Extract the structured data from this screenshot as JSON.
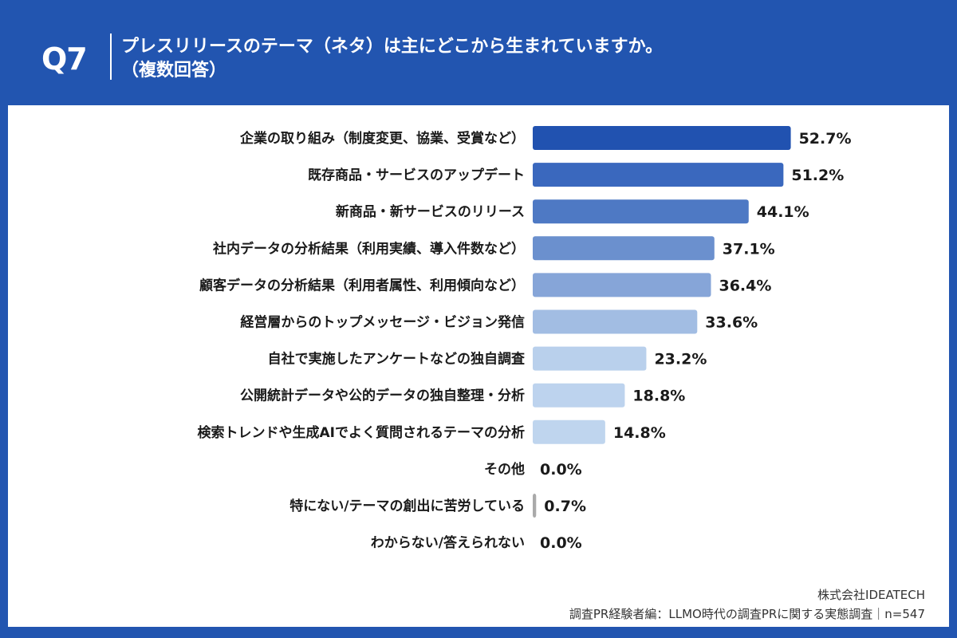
{
  "header": {
    "question_no": "Q7",
    "title_line1": "プレスリリースのテーマ（ネタ）は主にどこから生まれていますか。",
    "title_line2": "（複数回答）"
  },
  "chart_data": {
    "type": "bar",
    "orientation": "horizontal",
    "categories": [
      "企業の取り組み（制度変更、協業、受賞など）",
      "既存商品・サービスのアップデート",
      "新商品・新サービスのリリース",
      "社内データの分析結果（利用実績、導入件数など）",
      "顧客データの分析結果（利用者属性、利用傾向など）",
      "経営層からのトップメッセージ・ビジョン発信",
      "自社で実施したアンケートなどの独自調査",
      "公開統計データや公的データの独自整理・分析",
      "検索トレンドや生成AIでよく質問されるテーマの分析",
      "その他",
      "特にない/テーマの創出に苦労している",
      "わからない/答えられない"
    ],
    "values": [
      52.7,
      51.2,
      44.1,
      37.1,
      36.4,
      33.6,
      23.2,
      18.8,
      14.8,
      0.0,
      0.7,
      0.0
    ],
    "value_labels": [
      "52.7%",
      "51.2%",
      "44.1%",
      "37.1%",
      "36.4%",
      "33.6%",
      "23.2%",
      "18.8%",
      "14.8%",
      "0.0%",
      "0.7%",
      "0.0%"
    ],
    "colors": [
      "#2152B0",
      "#3A68BE",
      "#4E79C4",
      "#6B90CE",
      "#86A5D8",
      "#A2BDE3",
      "#B9D0EC",
      "#BDD3EE",
      "#BFD5EE",
      "#BFD5EE",
      "#AAAAAA",
      "#AAAAAA"
    ],
    "xlim": [
      0,
      100
    ],
    "grid": false,
    "legend": "none"
  },
  "footer": {
    "company": "株式会社IDEATECH",
    "source": "調査PR経験者編：LLMO時代の調査PRに関する実態調査｜n=547"
  }
}
